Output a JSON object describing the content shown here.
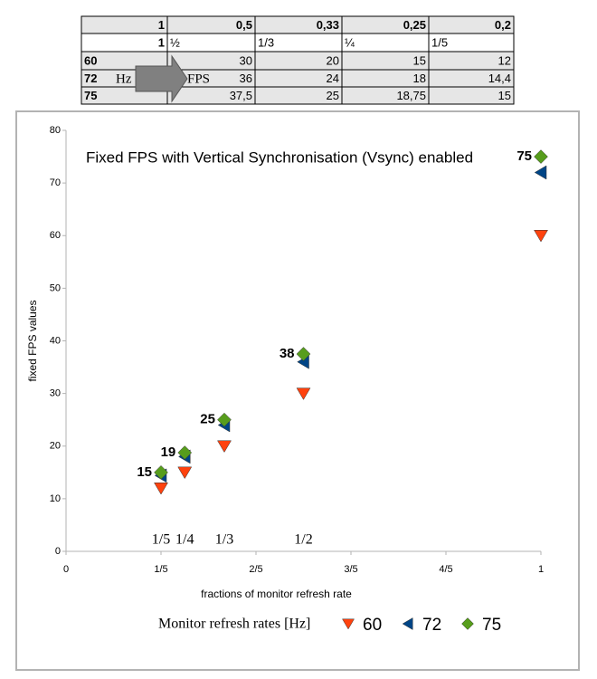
{
  "table": {
    "rows": [
      [
        "1",
        "0,5",
        "0,33",
        "0,25",
        "0,2"
      ],
      [
        "1",
        "½",
        "1/3",
        "¼",
        "1/5"
      ],
      [
        "60",
        "30",
        "20",
        "15",
        "12"
      ],
      [
        "72",
        "36",
        "24",
        "18",
        "14,4"
      ],
      [
        "75",
        "37,5",
        "25",
        "18,75",
        "15"
      ]
    ],
    "arrow": {
      "from": "Hz",
      "to": "FPS"
    }
  },
  "chart_data": {
    "type": "scatter",
    "title": "Fixed FPS with Vertical Synchronisation (Vsync) enabled",
    "xlabel": "fractions of monitor refresh rate",
    "ylabel": "fixed FPS values",
    "x": [
      0.2,
      0.25,
      0.3333,
      0.5,
      1
    ],
    "series": [
      {
        "name": "60",
        "color": "#ff420e",
        "marker": "triangle-down",
        "values": [
          12,
          15,
          20,
          30,
          60
        ]
      },
      {
        "name": "72",
        "color": "#004586",
        "marker": "triangle-left",
        "values": [
          14.4,
          18,
          24,
          36,
          72
        ]
      },
      {
        "name": "75",
        "color": "#579d1c",
        "marker": "diamond",
        "values": [
          15,
          18.75,
          25,
          37.5,
          75
        ],
        "value_labels": [
          "15",
          "19",
          "25",
          "38",
          "75"
        ]
      }
    ],
    "annotations": [
      {
        "x": 0.2,
        "text": "1/5"
      },
      {
        "x": 0.25,
        "text": "1/4"
      },
      {
        "x": 0.3333,
        "text": "1/3"
      },
      {
        "x": 0.5,
        "text": "1/2"
      }
    ],
    "legend_title": "Monitor refresh rates [Hz]",
    "legend": "bottom",
    "grid": false,
    "xlim": [
      0,
      1
    ],
    "xticks": [
      0,
      {
        "value": 0.2,
        "label": "1/5"
      },
      {
        "value": 0.4,
        "label": "2/5"
      },
      {
        "value": 0.6,
        "label": "3/5"
      },
      {
        "value": 0.8,
        "label": "4/5"
      },
      1
    ],
    "ylim": [
      0,
      80
    ],
    "yticks": [
      0,
      10,
      20,
      30,
      40,
      50,
      60,
      70,
      80
    ]
  }
}
